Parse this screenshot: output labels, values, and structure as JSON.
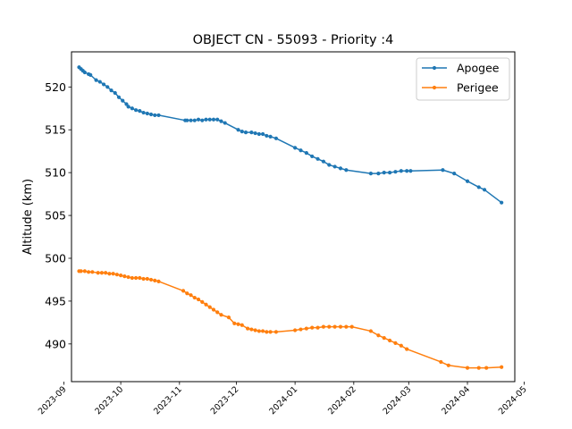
{
  "chart_data": {
    "type": "line",
    "title": "OBJECT CN - 55093 - Priority :4",
    "xlabel": "",
    "ylabel": "Altitude (km)",
    "x_axis_type": "date",
    "xlim": [
      "2023-09-05",
      "2024-04-26"
    ],
    "ylim": [
      485.6,
      524.1
    ],
    "yticks": [
      490,
      495,
      500,
      505,
      510,
      515,
      520
    ],
    "xticks": [
      "2023-09-01",
      "2023-10-01",
      "2023-11-01",
      "2023-12-01",
      "2024-01-01",
      "2024-02-01",
      "2024-03-01",
      "2024-04-01",
      "2024-05-01"
    ],
    "xtick_labels": [
      "2023-09",
      "2023-10",
      "2023-11",
      "2023-12",
      "2024-01",
      "2024-02",
      "2024-03",
      "2024-04",
      "2024-05"
    ],
    "grid": false,
    "legend_position": "upper right",
    "series": [
      {
        "name": "Apogee",
        "color": "#1f77b4",
        "points": [
          [
            "2023-09-09",
            522.3
          ],
          [
            "2023-09-10",
            522.1
          ],
          [
            "2023-09-11",
            521.9
          ],
          [
            "2023-09-12",
            521.7
          ],
          [
            "2023-09-14",
            521.5
          ],
          [
            "2023-09-15",
            521.4
          ],
          [
            "2023-09-18",
            520.8
          ],
          [
            "2023-09-20",
            520.6
          ],
          [
            "2023-09-22",
            520.3
          ],
          [
            "2023-09-24",
            520.0
          ],
          [
            "2023-09-26",
            519.6
          ],
          [
            "2023-09-28",
            519.3
          ],
          [
            "2023-09-30",
            518.8
          ],
          [
            "2023-10-02",
            518.4
          ],
          [
            "2023-10-04",
            518.0
          ],
          [
            "2023-10-05",
            517.7
          ],
          [
            "2023-10-07",
            517.5
          ],
          [
            "2023-10-09",
            517.3
          ],
          [
            "2023-10-11",
            517.2
          ],
          [
            "2023-10-13",
            517.0
          ],
          [
            "2023-10-15",
            516.9
          ],
          [
            "2023-10-17",
            516.8
          ],
          [
            "2023-10-19",
            516.7
          ],
          [
            "2023-10-21",
            516.7
          ],
          [
            "2023-11-04",
            516.1
          ],
          [
            "2023-11-05",
            516.1
          ],
          [
            "2023-11-07",
            516.1
          ],
          [
            "2023-11-09",
            516.1
          ],
          [
            "2023-11-11",
            516.2
          ],
          [
            "2023-11-13",
            516.1
          ],
          [
            "2023-11-15",
            516.2
          ],
          [
            "2023-11-17",
            516.2
          ],
          [
            "2023-11-19",
            516.2
          ],
          [
            "2023-11-21",
            516.2
          ],
          [
            "2023-11-23",
            516.0
          ],
          [
            "2023-11-25",
            515.8
          ],
          [
            "2023-12-02",
            515.0
          ],
          [
            "2023-12-04",
            514.8
          ],
          [
            "2023-12-06",
            514.7
          ],
          [
            "2023-12-09",
            514.7
          ],
          [
            "2023-12-11",
            514.6
          ],
          [
            "2023-12-13",
            514.5
          ],
          [
            "2023-12-15",
            514.5
          ],
          [
            "2023-12-17",
            514.3
          ],
          [
            "2023-12-19",
            514.2
          ],
          [
            "2023-12-22",
            514.0
          ],
          [
            "2024-01-01",
            512.9
          ],
          [
            "2024-01-04",
            512.6
          ],
          [
            "2024-01-07",
            512.3
          ],
          [
            "2024-01-10",
            511.9
          ],
          [
            "2024-01-13",
            511.6
          ],
          [
            "2024-01-16",
            511.3
          ],
          [
            "2024-01-19",
            510.9
          ],
          [
            "2024-01-22",
            510.7
          ],
          [
            "2024-01-25",
            510.5
          ],
          [
            "2024-01-28",
            510.3
          ],
          [
            "2024-02-10",
            509.9
          ],
          [
            "2024-02-14",
            509.9
          ],
          [
            "2024-02-17",
            510.0
          ],
          [
            "2024-02-20",
            510.0
          ],
          [
            "2024-02-23",
            510.1
          ],
          [
            "2024-02-26",
            510.2
          ],
          [
            "2024-02-29",
            510.2
          ],
          [
            "2024-03-02",
            510.2
          ],
          [
            "2024-03-19",
            510.3
          ],
          [
            "2024-03-25",
            509.9
          ],
          [
            "2024-04-01",
            509.0
          ],
          [
            "2024-04-07",
            508.3
          ],
          [
            "2024-04-10",
            508.0
          ],
          [
            "2024-04-19",
            506.5
          ]
        ]
      },
      {
        "name": "Perigee",
        "color": "#ff7f0e",
        "points": [
          [
            "2023-09-09",
            498.5
          ],
          [
            "2023-09-10",
            498.5
          ],
          [
            "2023-09-12",
            498.5
          ],
          [
            "2023-09-14",
            498.4
          ],
          [
            "2023-09-16",
            498.4
          ],
          [
            "2023-09-19",
            498.3
          ],
          [
            "2023-09-21",
            498.3
          ],
          [
            "2023-09-23",
            498.3
          ],
          [
            "2023-09-25",
            498.2
          ],
          [
            "2023-09-27",
            498.2
          ],
          [
            "2023-09-29",
            498.1
          ],
          [
            "2023-10-01",
            498.0
          ],
          [
            "2023-10-03",
            497.9
          ],
          [
            "2023-10-05",
            497.8
          ],
          [
            "2023-10-07",
            497.7
          ],
          [
            "2023-10-09",
            497.7
          ],
          [
            "2023-10-11",
            497.7
          ],
          [
            "2023-10-13",
            497.6
          ],
          [
            "2023-10-15",
            497.6
          ],
          [
            "2023-10-17",
            497.5
          ],
          [
            "2023-10-19",
            497.4
          ],
          [
            "2023-10-21",
            497.3
          ],
          [
            "2023-11-03",
            496.2
          ],
          [
            "2023-11-05",
            495.9
          ],
          [
            "2023-11-07",
            495.7
          ],
          [
            "2023-11-09",
            495.4
          ],
          [
            "2023-11-11",
            495.2
          ],
          [
            "2023-11-13",
            494.9
          ],
          [
            "2023-11-15",
            494.6
          ],
          [
            "2023-11-17",
            494.3
          ],
          [
            "2023-11-19",
            494.0
          ],
          [
            "2023-11-21",
            493.7
          ],
          [
            "2023-11-23",
            493.4
          ],
          [
            "2023-11-27",
            493.1
          ],
          [
            "2023-11-30",
            492.4
          ],
          [
            "2023-12-02",
            492.3
          ],
          [
            "2023-12-04",
            492.2
          ],
          [
            "2023-12-07",
            491.8
          ],
          [
            "2023-12-09",
            491.7
          ],
          [
            "2023-12-11",
            491.6
          ],
          [
            "2023-12-13",
            491.5
          ],
          [
            "2023-12-15",
            491.5
          ],
          [
            "2023-12-17",
            491.4
          ],
          [
            "2023-12-19",
            491.4
          ],
          [
            "2023-12-22",
            491.4
          ],
          [
            "2024-01-01",
            491.6
          ],
          [
            "2024-01-04",
            491.7
          ],
          [
            "2024-01-07",
            491.8
          ],
          [
            "2024-01-10",
            491.9
          ],
          [
            "2024-01-13",
            491.9
          ],
          [
            "2024-01-16",
            492.0
          ],
          [
            "2024-01-19",
            492.0
          ],
          [
            "2024-01-22",
            492.0
          ],
          [
            "2024-01-25",
            492.0
          ],
          [
            "2024-01-28",
            492.0
          ],
          [
            "2024-01-31",
            492.0
          ],
          [
            "2024-02-10",
            491.5
          ],
          [
            "2024-02-14",
            491.0
          ],
          [
            "2024-02-17",
            490.7
          ],
          [
            "2024-02-20",
            490.4
          ],
          [
            "2024-02-23",
            490.1
          ],
          [
            "2024-02-26",
            489.8
          ],
          [
            "2024-02-29",
            489.4
          ],
          [
            "2024-03-18",
            487.9
          ],
          [
            "2024-03-22",
            487.5
          ],
          [
            "2024-04-01",
            487.2
          ],
          [
            "2024-04-07",
            487.2
          ],
          [
            "2024-04-11",
            487.2
          ],
          [
            "2024-04-19",
            487.3
          ]
        ]
      }
    ]
  }
}
